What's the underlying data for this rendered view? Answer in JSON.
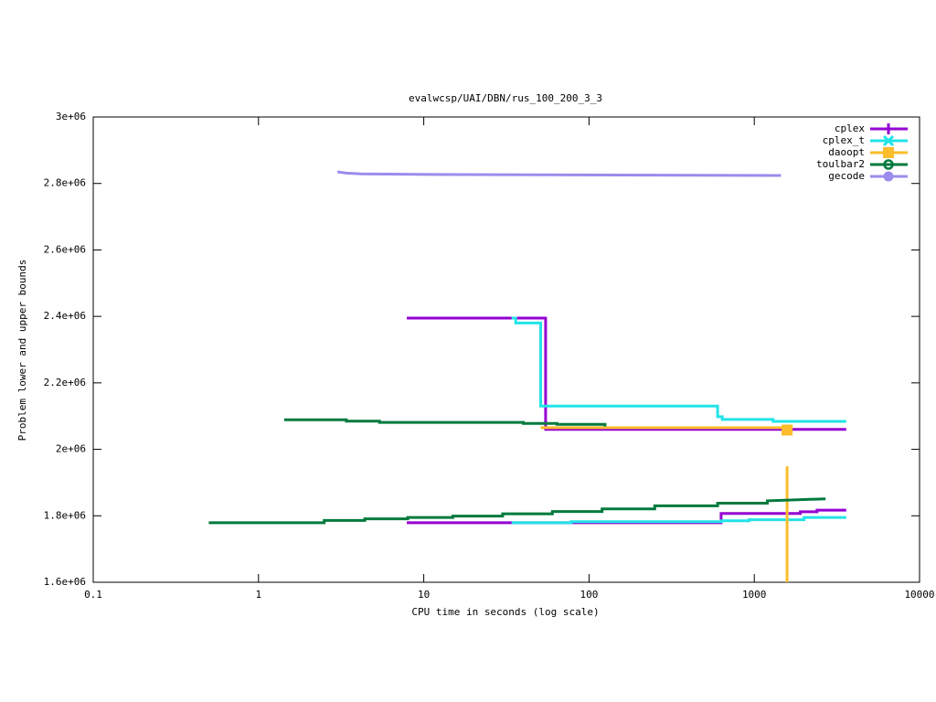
{
  "chart_data": {
    "type": "line",
    "title": "evalwcsp/UAI/DBN/rus_100_200_3_3",
    "x_label": "CPU time in seconds (log scale)",
    "y_label": "Problem lower and upper bounds",
    "x_log": true,
    "xlim": [
      0.1,
      10000
    ],
    "xticks": [
      0.1,
      1,
      10,
      100,
      1000,
      10000
    ],
    "ylim": [
      1600000,
      3000000
    ],
    "yticks": [
      {
        "value": 1600000,
        "label": "1.6e+06"
      },
      {
        "value": 1800000,
        "label": "1.8e+06"
      },
      {
        "value": 2000000,
        "label": "2e+06"
      },
      {
        "value": 2200000,
        "label": "2.2e+06"
      },
      {
        "value": 2400000,
        "label": "2.4e+06"
      },
      {
        "value": 2600000,
        "label": "2.6e+06"
      },
      {
        "value": 2800000,
        "label": "2.8e+06"
      },
      {
        "value": 3000000,
        "label": "3e+06"
      }
    ],
    "legend": "top-right",
    "series": [
      {
        "name": "cplex",
        "color": "#9400d3",
        "marker": "plus",
        "lines": [
          {
            "x": [
              7.9,
              54.6,
              54.6,
              3600
            ],
            "values": [
              2395000,
              2395000,
              2060000,
              2060000
            ]
          },
          {
            "x": [
              7.9,
              630,
              630,
              1900,
              1900,
              2400,
              2400,
              3600
            ],
            "values": [
              1779000,
              1779000,
              1807000,
              1807000,
              1812000,
              1812000,
              1817000,
              1817000
            ]
          }
        ]
      },
      {
        "name": "cplex_t",
        "color": "#22e3e8",
        "marker": "cross",
        "lines": [
          {
            "x": [
              34,
              36,
              36,
              51,
              51,
              600,
              600,
              640,
              640,
              1300,
              1300,
              3600
            ],
            "values": [
              2395000,
              2395000,
              2380000,
              2380000,
              2130000,
              2130000,
              2098000,
              2098000,
              2090000,
              2090000,
              2084000,
              2084000
            ]
          },
          {
            "x": [
              34,
              78,
              78,
              630,
              630,
              930,
              930,
              2000,
              2000,
              3600
            ],
            "values": [
              1779000,
              1779000,
              1782000,
              1782000,
              1785000,
              1785000,
              1788000,
              1788000,
              1795000,
              1795000
            ]
          }
        ]
      },
      {
        "name": "daoopt",
        "color": "#fbbd2c",
        "marker": "square",
        "lines": [
          {
            "x": [
              51,
              1580
            ],
            "values": [
              2065000,
              2065000
            ]
          },
          {
            "x": [
              1580,
              1580
            ],
            "values": [
              1600000,
              1949000
            ]
          }
        ],
        "points": {
          "x": [
            1580
          ],
          "values": [
            2058000
          ]
        }
      },
      {
        "name": "toulbar2",
        "color": "#007a3d",
        "marker": "circle",
        "lines": [
          {
            "x": [
              1.43,
              3.4,
              3.4,
              5.4,
              5.4,
              40,
              40,
              64,
              64,
              125,
              125
            ],
            "values": [
              2089000,
              2089000,
              2085000,
              2085000,
              2081000,
              2081000,
              2078000,
              2078000,
              2075000,
              2075000,
              2069000
            ]
          },
          {
            "x": [
              0.5,
              2.5,
              2.5,
              4.4,
              4.4,
              8,
              8,
              15,
              15,
              30,
              30,
              60,
              60,
              120,
              120,
              250,
              250,
              600,
              600,
              1200,
              1200,
              2700
            ],
            "values": [
              1779000,
              1779000,
              1786000,
              1786000,
              1791000,
              1791000,
              1795000,
              1795000,
              1799000,
              1799000,
              1806000,
              1806000,
              1813000,
              1813000,
              1821000,
              1821000,
              1830000,
              1830000,
              1838000,
              1838000,
              1845000,
              1851000
            ]
          }
        ]
      },
      {
        "name": "gecode",
        "color": "#9c8ced",
        "marker": "filled-circle",
        "lines": [
          {
            "x": [
              3,
              3.4,
              4.2,
              11.5,
              1450
            ],
            "values": [
              2835000,
              2831000,
              2829000,
              2827000,
              2824000
            ]
          }
        ]
      }
    ]
  }
}
